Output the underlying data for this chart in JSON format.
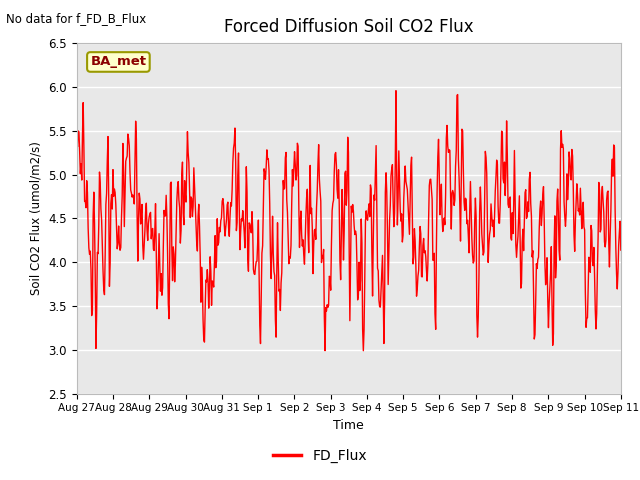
{
  "title": "Forced Diffusion Soil CO2 Flux",
  "xlabel": "Time",
  "ylabel": "Soil CO2 Flux (umol/m2/s)",
  "ylim": [
    2.5,
    6.5
  ],
  "yticks": [
    2.5,
    3.0,
    3.5,
    4.0,
    4.5,
    5.0,
    5.5,
    6.0,
    6.5
  ],
  "background_color": "#e8e8e8",
  "line_color": "red",
  "line_width": 1.0,
  "legend_label": "FD_Flux",
  "corner_text": "No data for f_FD_B_Flux",
  "box_label": "BA_met",
  "box_facecolor": "#ffffcc",
  "box_edgecolor": "#999900",
  "xtick_labels": [
    "Aug 27",
    "Aug 28",
    "Aug 29",
    "Aug 30",
    "Aug 31",
    "Sep 1",
    "Sep 2",
    "Sep 3",
    "Sep 4",
    "Sep 5",
    "Sep 6",
    "Sep 7",
    "Sep 8",
    "Sep 9",
    "Sep 10",
    "Sep 11"
  ],
  "num_points": 768,
  "seed": 17
}
